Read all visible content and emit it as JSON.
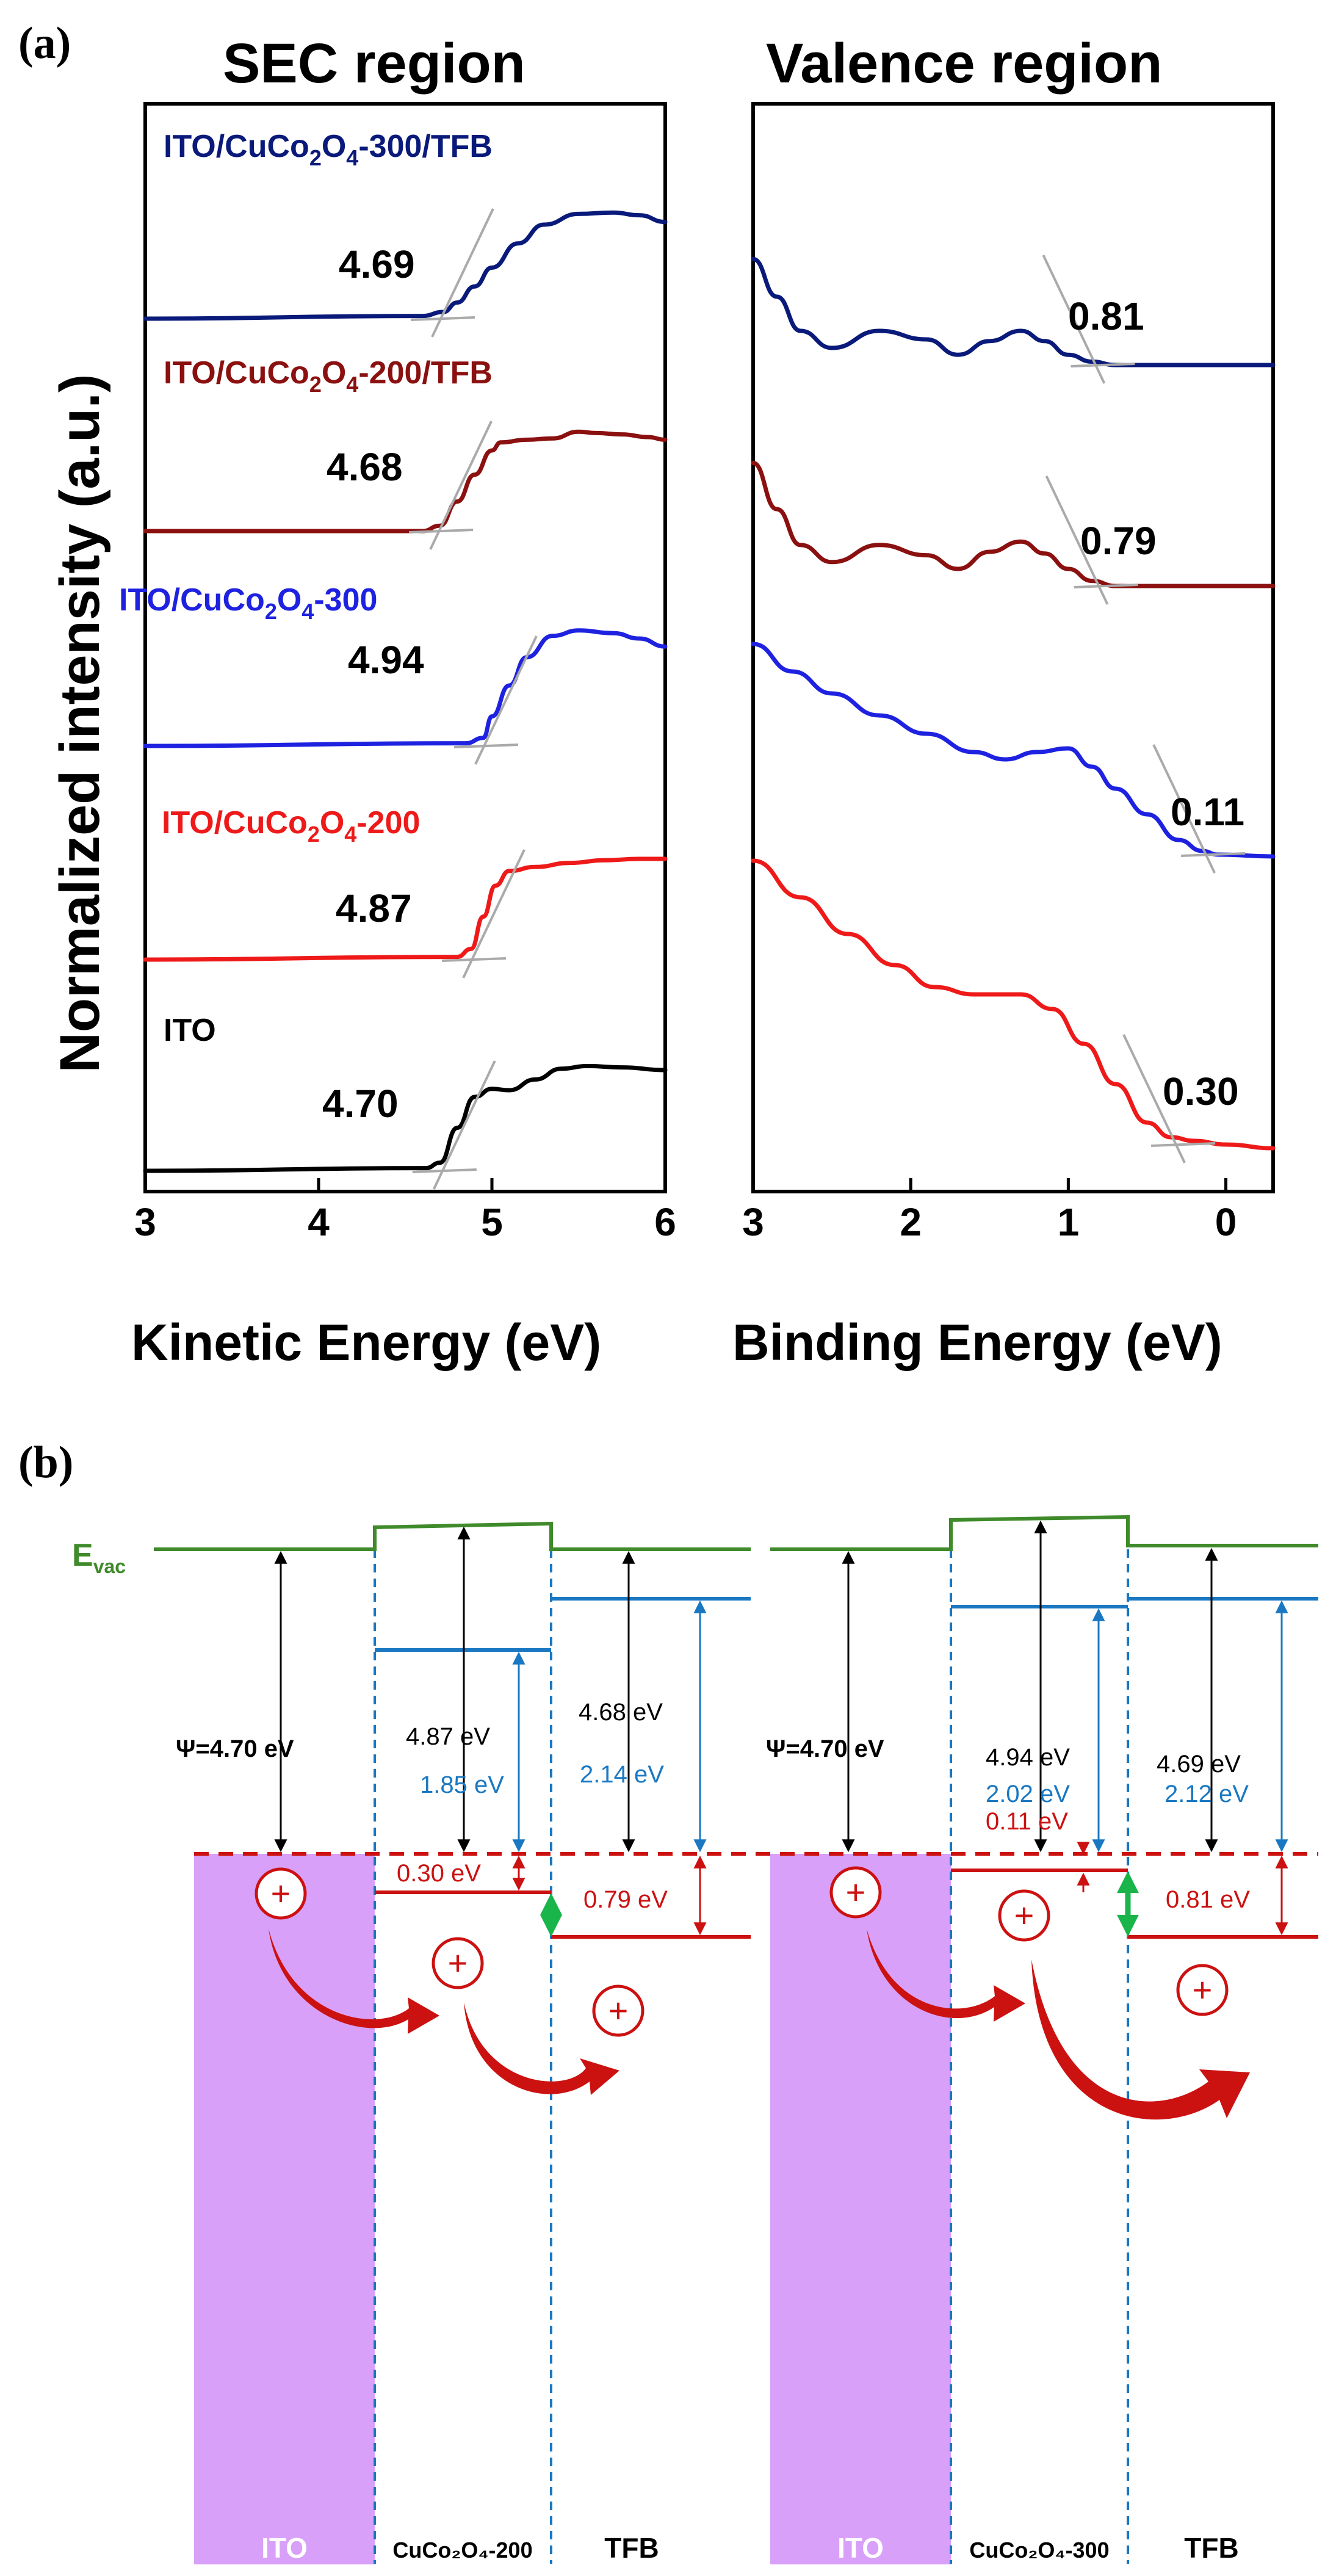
{
  "panel_a": {
    "label": "(a)",
    "y_axis_label": "Normalized intensity (a.u.)",
    "sec": {
      "title": "SEC region",
      "xlabel": "Kinetic Energy (eV)",
      "ticks": [
        "3",
        "4",
        "5",
        "6"
      ]
    },
    "valence": {
      "title": "Valence region",
      "xlabel": "Binding Energy (eV)",
      "ticks": [
        "3",
        "2",
        "1",
        "0"
      ]
    }
  },
  "chart_data": [
    {
      "type": "line",
      "title": "SEC region",
      "xlabel": "Kinetic Energy (eV)",
      "ylabel": "Normalized intensity (a.u.)",
      "xlim": [
        3,
        6
      ],
      "x_tick_labels": [
        "3",
        "4",
        "5",
        "6"
      ],
      "series": [
        {
          "name": "ITO/CuCo2O4-300/TFB",
          "color": "#0a1a7a",
          "value": "4.69",
          "onset": 4.69,
          "x": [
            3.0,
            4.6,
            4.72,
            4.8,
            4.9,
            5.0,
            5.15,
            5.3,
            5.5,
            5.7,
            5.85,
            6.0
          ],
          "y": [
            0.0,
            0.02,
            0.05,
            0.12,
            0.24,
            0.38,
            0.56,
            0.7,
            0.78,
            0.79,
            0.77,
            0.72
          ]
        },
        {
          "name": "ITO/CuCo2O4-200/TFB",
          "color": "#8b1010",
          "value": "4.68",
          "onset": 4.68,
          "x": [
            3.0,
            4.6,
            4.7,
            4.8,
            4.9,
            5.0,
            5.05,
            5.2,
            5.35,
            5.5,
            5.6,
            5.75,
            5.9,
            6.0
          ],
          "y": [
            0.0,
            0.0,
            0.04,
            0.22,
            0.42,
            0.6,
            0.66,
            0.68,
            0.69,
            0.74,
            0.73,
            0.72,
            0.7,
            0.68
          ]
        },
        {
          "name": "ITO/CuCo2O4-300",
          "color": "#1e22e0",
          "value": "4.94",
          "onset": 4.94,
          "x": [
            3.0,
            4.85,
            4.95,
            5.0,
            5.1,
            5.2,
            5.35,
            5.5,
            5.7,
            5.85,
            6.0
          ],
          "y": [
            0.0,
            0.02,
            0.06,
            0.22,
            0.45,
            0.66,
            0.82,
            0.86,
            0.84,
            0.8,
            0.74
          ]
        },
        {
          "name": "ITO/CuCo2O4-200",
          "color": "#ee1a1a",
          "value": "4.87",
          "onset": 4.87,
          "x": [
            3.0,
            4.8,
            4.88,
            4.95,
            5.02,
            5.1,
            5.25,
            5.45,
            5.65,
            5.85,
            6.0
          ],
          "y": [
            0.0,
            0.02,
            0.08,
            0.32,
            0.55,
            0.66,
            0.69,
            0.72,
            0.74,
            0.75,
            0.75
          ]
        },
        {
          "name": "ITO",
          "color": "#000000",
          "value": "4.70",
          "onset": 4.7,
          "x": [
            3.0,
            4.62,
            4.7,
            4.8,
            4.9,
            5.0,
            5.1,
            5.25,
            5.4,
            5.55,
            5.75,
            6.0
          ],
          "y": [
            0.0,
            0.02,
            0.06,
            0.32,
            0.55,
            0.61,
            0.6,
            0.68,
            0.76,
            0.78,
            0.77,
            0.75
          ]
        }
      ]
    },
    {
      "type": "line",
      "title": "Valence region",
      "xlabel": "Binding Energy (eV)",
      "xlim": [
        3,
        -0.3
      ],
      "x_tick_labels": [
        "3",
        "2",
        "1",
        "0"
      ],
      "series": [
        {
          "name": "ITO/CuCo2O4-300/TFB",
          "color": "#0a1a7a",
          "value": "0.81",
          "onset": 0.81,
          "x": [
            3.0,
            2.85,
            2.7,
            2.5,
            2.2,
            1.9,
            1.7,
            1.5,
            1.3,
            1.15,
            1.0,
            0.85,
            0.7,
            0.4,
            0.0,
            -0.3
          ],
          "y": [
            0.62,
            0.4,
            0.2,
            0.1,
            0.2,
            0.15,
            0.06,
            0.14,
            0.2,
            0.14,
            0.06,
            0.02,
            0.0,
            0.0,
            0.0,
            0.0
          ]
        },
        {
          "name": "ITO/CuCo2O4-200/TFB",
          "color": "#8b1010",
          "value": "0.79",
          "onset": 0.79,
          "x": [
            3.0,
            2.85,
            2.7,
            2.5,
            2.2,
            1.9,
            1.7,
            1.5,
            1.3,
            1.15,
            1.0,
            0.85,
            0.7,
            0.4,
            0.0,
            -0.3
          ],
          "y": [
            0.72,
            0.45,
            0.24,
            0.14,
            0.24,
            0.18,
            0.1,
            0.2,
            0.26,
            0.19,
            0.1,
            0.03,
            0.0,
            0.0,
            0.0,
            0.0
          ]
        },
        {
          "name": "ITO/CuCo2O4-300",
          "color": "#1e22e0",
          "value": "0.11",
          "onset": 0.11,
          "x": [
            3.0,
            2.75,
            2.5,
            2.2,
            1.9,
            1.6,
            1.4,
            1.2,
            1.0,
            0.85,
            0.7,
            0.5,
            0.3,
            0.15,
            0.05,
            -0.3
          ],
          "y": [
            1.15,
            1.0,
            0.88,
            0.76,
            0.66,
            0.56,
            0.52,
            0.56,
            0.58,
            0.48,
            0.36,
            0.22,
            0.08,
            0.02,
            0.0,
            -0.01
          ]
        },
        {
          "name": "ITO/CuCo2O4-200",
          "color": "#ee1a1a",
          "value": "0.30",
          "onset": 0.3,
          "x": [
            3.0,
            2.7,
            2.4,
            2.1,
            1.85,
            1.6,
            1.3,
            1.1,
            0.9,
            0.7,
            0.5,
            0.35,
            0.2,
            0.0,
            -0.3
          ],
          "y": [
            1.55,
            1.35,
            1.15,
            0.98,
            0.86,
            0.82,
            0.82,
            0.74,
            0.55,
            0.33,
            0.12,
            0.04,
            0.02,
            0.0,
            -0.02
          ]
        }
      ]
    }
  ],
  "panel_b": {
    "label": "(b)",
    "evac_label": "E",
    "evac_sub": "vac",
    "left": {
      "ito_wf": "Ψ=4.70 eV",
      "cuco_wf": "4.87 eV",
      "tfb_wf": "4.68 eV",
      "cuco_blue": "1.85 eV",
      "tfb_blue": "2.14 eV",
      "cuco_red": "0.30 eV",
      "tfb_red": "0.79 eV",
      "label_ito": "ITO",
      "label_cuco": "CuCo₂O₄-200",
      "label_tfb": "TFB"
    },
    "right": {
      "ito_wf": "Ψ=4.70 eV",
      "cuco_wf": "4.94 eV",
      "tfb_wf": "4.69 eV",
      "cuco_blue": "2.02 eV",
      "tfb_blue": "2.12 eV",
      "cuco_red": "0.11 eV",
      "tfb_red": "0.81 eV",
      "label_ito": "ITO",
      "label_cuco": "CuCo₂O₄-300",
      "label_tfb": "TFB"
    },
    "hole_symbol": "+"
  },
  "colors": {
    "evac": "#3f8a2a",
    "blue_level": "#1a78c2",
    "red_level": "#cc1111",
    "ito_fill": "#d8a0f8",
    "green_arrow": "#1ab54a"
  }
}
